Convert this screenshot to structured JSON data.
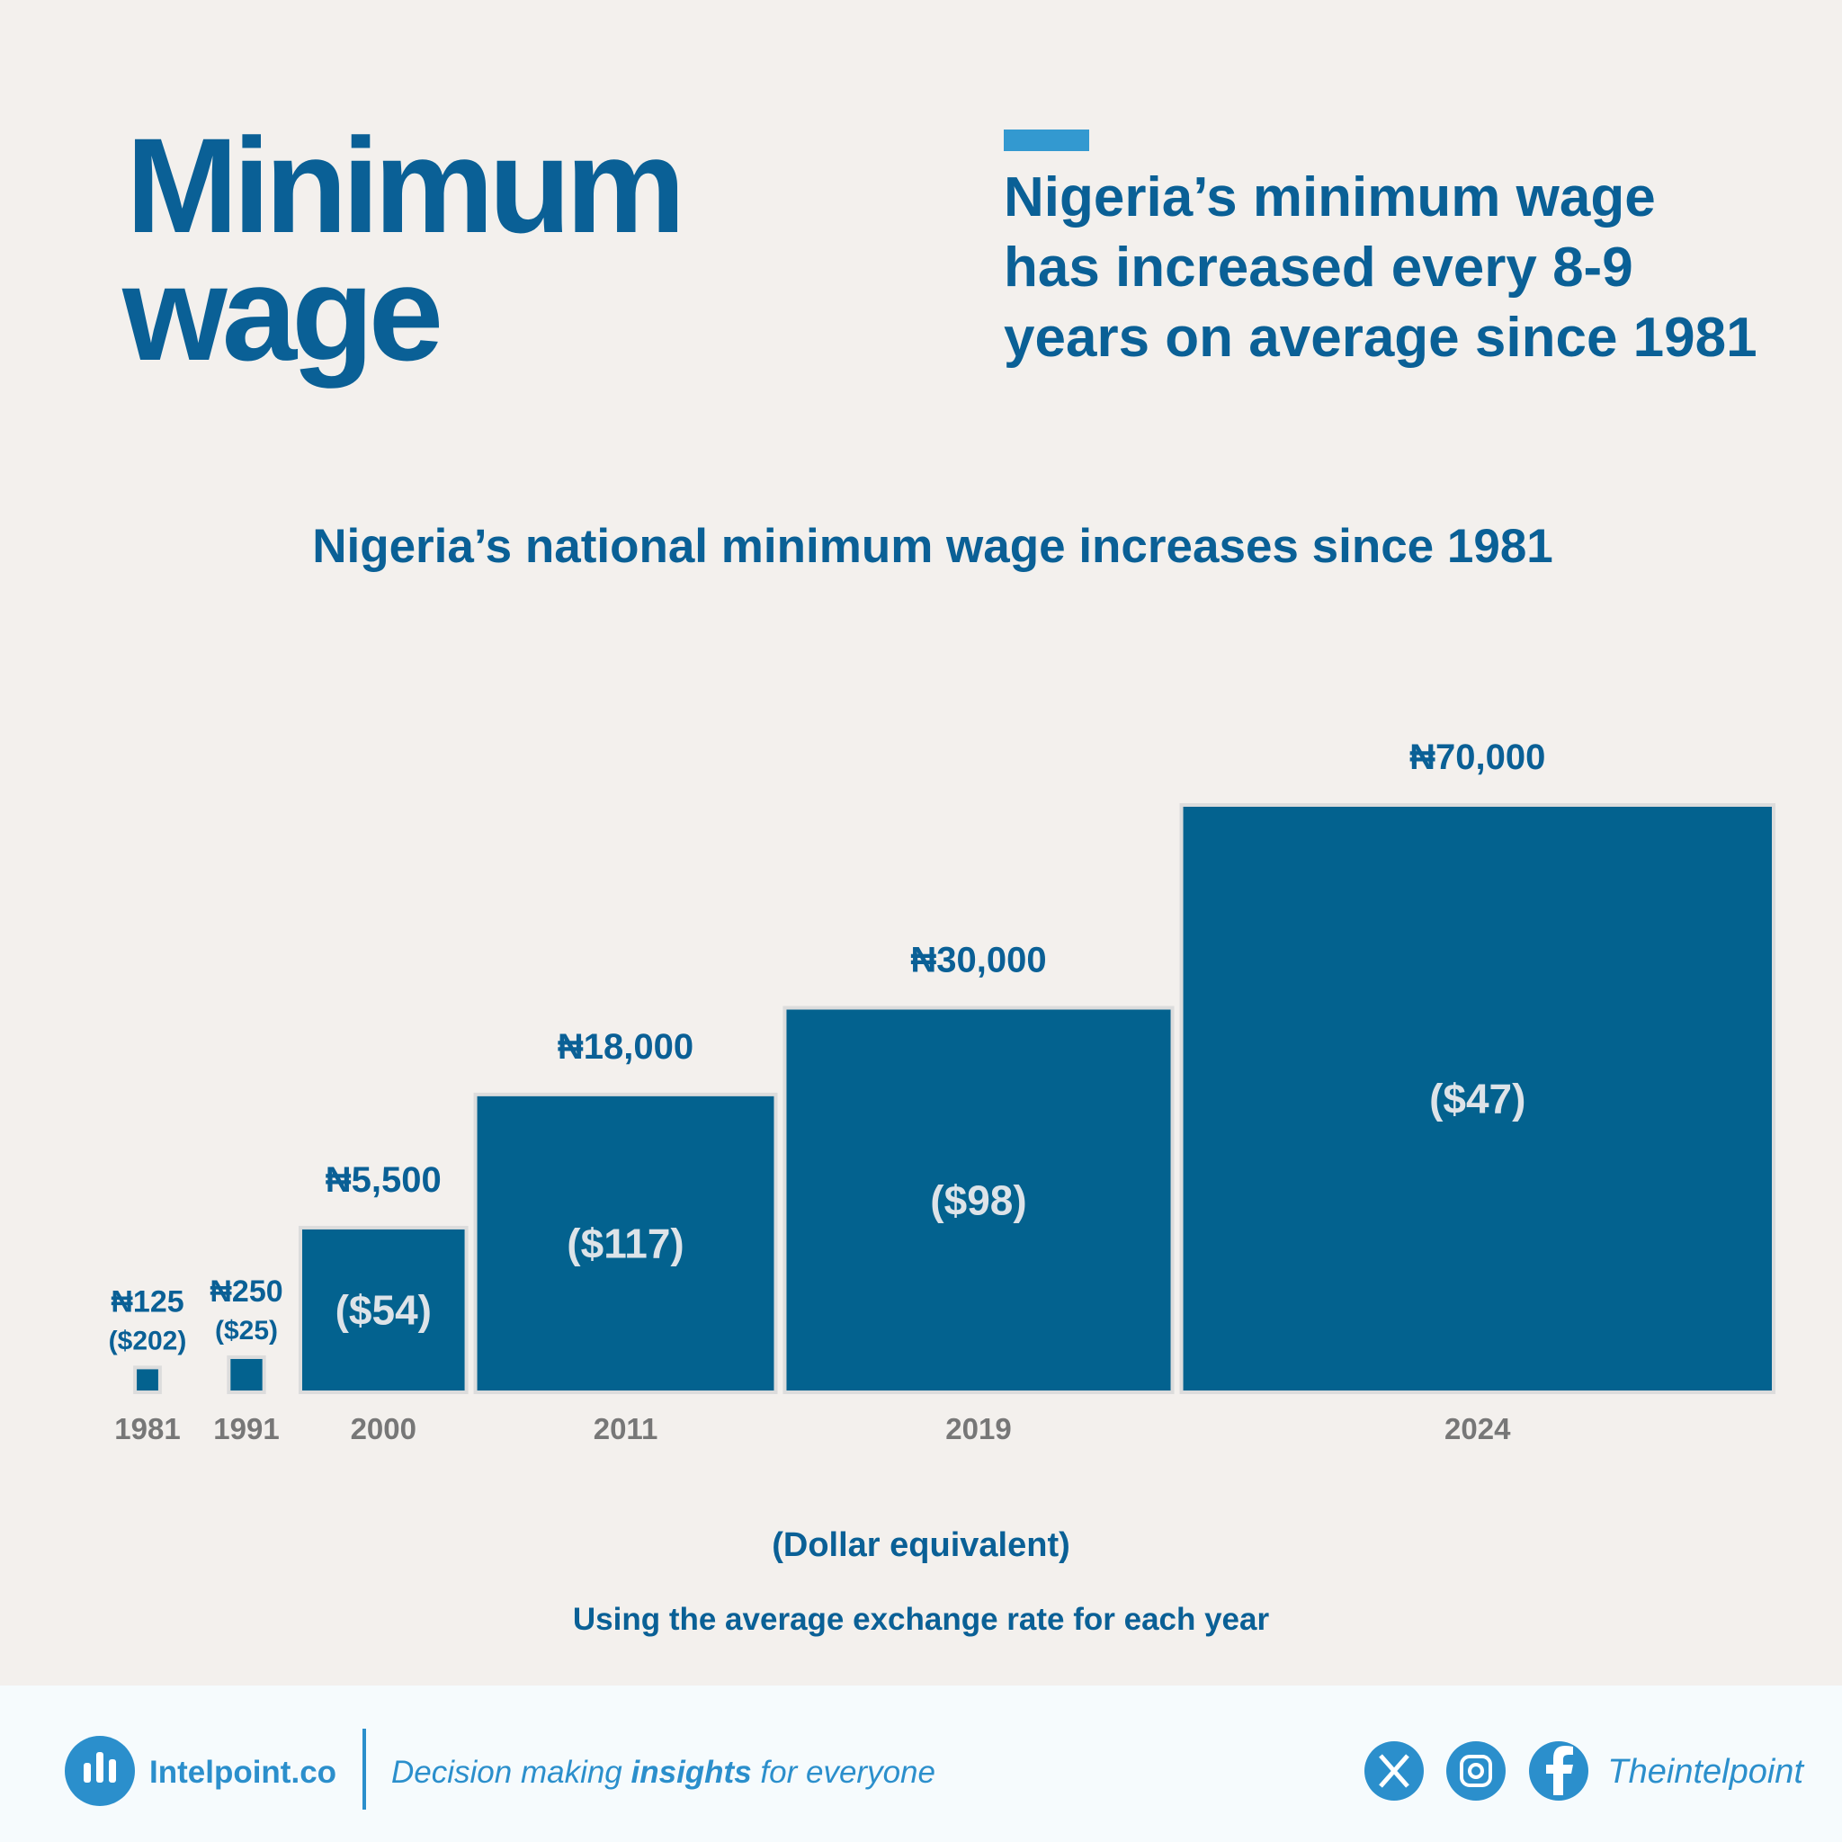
{
  "header": {
    "title_lines": [
      "Minimum",
      "wage"
    ],
    "subtitle_lines": [
      "Nigeria’s minimum wage",
      "has increased every 8-9",
      "years on average since 1981"
    ]
  },
  "chart_data": {
    "type": "bar",
    "title": "Nigeria’s national minimum wage increases since 1981",
    "categories": [
      "1981",
      "1991",
      "2000",
      "2011",
      "2019",
      "2024"
    ],
    "values": [
      125,
      250,
      5500,
      18000,
      30000,
      70000
    ],
    "value_labels": [
      "₦125",
      "₦250",
      "₦5,500",
      "₦18,000",
      "₦30,000",
      "₦70,000"
    ],
    "dollar_values": [
      202,
      25,
      54,
      117,
      98,
      47
    ],
    "dollar_value_labels": [
      "($202)",
      "($25)",
      "($54)",
      "($117)",
      "($98)",
      "($47)"
    ],
    "color": "#03628f",
    "caption": "(Dollar equivalent)",
    "note": "Using the average exchange rate for each year"
  },
  "footer": {
    "brand": "Intelpoint.co",
    "tagline": [
      "Decision making ",
      "insights",
      " for everyone"
    ],
    "handle": "Theintelpoint"
  }
}
